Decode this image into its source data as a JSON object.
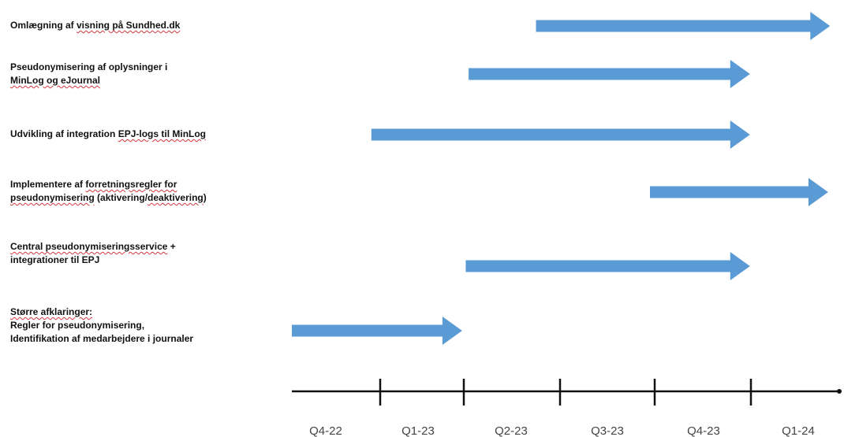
{
  "tasks": [
    {
      "id": "omlaegning",
      "lines": [
        [
          {
            "t": "Omlægning af "
          },
          {
            "t": "visning på Sundhed.dk",
            "u": true
          }
        ]
      ],
      "start": 2.75,
      "end": 5.85
    },
    {
      "id": "pseudonymisering-oplysninger",
      "lines": [
        [
          {
            "t": "Pseudonymisering af oplysninger i"
          }
        ],
        [
          {
            "t": "MinLog og eJournal",
            "u": true
          }
        ]
      ],
      "start": 2.05,
      "end": 4.99
    },
    {
      "id": "epj-integration",
      "lines": [
        [
          {
            "t": "Udvikling af integration "
          },
          {
            "t": "EPJ-logs til MinLog",
            "u": true
          }
        ]
      ],
      "start": 0.9,
      "end": 4.99
    },
    {
      "id": "forretningsregler",
      "lines": [
        [
          {
            "t": "Implementere af "
          },
          {
            "t": "forretningsregler for",
            "u": true
          }
        ],
        [
          {
            "t": "pseudonymisering",
            "u": true
          },
          {
            "t": " (aktivering/"
          },
          {
            "t": "deaktivering",
            "u": true
          },
          {
            "t": ")"
          }
        ]
      ],
      "start": 3.95,
      "end": 5.83
    },
    {
      "id": "central-service",
      "lines": [
        [
          {
            "t": "Central pseudonymiseringsservice",
            "u": true
          },
          {
            "t": " +"
          }
        ],
        [
          {
            "t": "integrationer til EPJ"
          }
        ]
      ],
      "start": 2.02,
      "end": 4.99
    },
    {
      "id": "afklaringer",
      "lines": [
        [
          {
            "t": "Større afklaringer:",
            "u": true
          }
        ],
        [
          {
            "t": "Regler for pseudonymisering,"
          }
        ],
        [
          {
            "t": "Identifikation af medarbejdere i journaler"
          }
        ]
      ],
      "start": 0.0,
      "end": 1.98
    }
  ],
  "quarters": [
    "Q4-22",
    "Q1-23",
    "Q2-23",
    "Q3-23",
    "Q4-23",
    "Q1-24"
  ],
  "colors": {
    "arrow": "#5b9bd5",
    "axis": "#111111",
    "spellcheck": "#d9363e"
  }
}
